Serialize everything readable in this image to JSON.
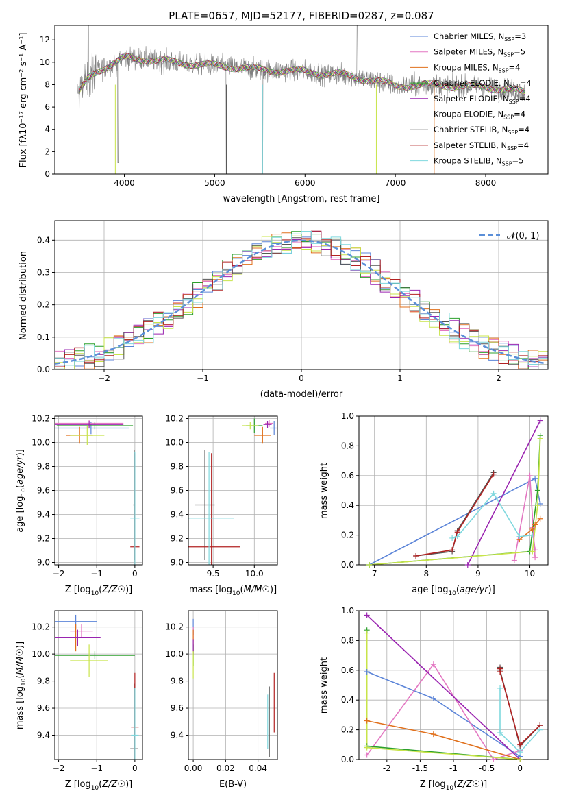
{
  "figure": {
    "title": "PLATE=0657, MJD=52177, FIBERID=0287, z=0.087"
  },
  "colors": {
    "Chabrier MILES": "#5b84d8",
    "Salpeter MILES": "#e377c2",
    "Kroupa MILES": "#e0701c",
    "Chabrier ELODIE": "#2ca02c",
    "Salpeter ELODIE": "#9a24b0",
    "Kroupa ELODIE": "#c8e44a",
    "Chabrier STELIB": "#555555",
    "Salpeter STELIB": "#b22222",
    "Kroupa STELIB": "#7fd8de",
    "data": "#808080",
    "gauss": "#5b8fd8"
  },
  "chart_data": [
    {
      "id": "spectrum",
      "type": "line",
      "title": "PLATE=0657, MJD=52177, FIBERID=0287, z=0.087",
      "xlabel": "wavelength [Angstrom, rest frame]",
      "ylabel": "Flux [fλ10⁻¹⁷ erg cm⁻² s⁻¹ A⁻¹]",
      "xlim": [
        3230,
        8690
      ],
      "ylim": [
        0,
        13.3
      ],
      "xticks": [
        4000,
        5000,
        6000,
        7000,
        8000
      ],
      "yticks": [
        0,
        2,
        4,
        6,
        8,
        10,
        12
      ],
      "legend_position": "top-right",
      "legend": [
        {
          "label": "Chabrier MILES, N",
          "sub": "SSP",
          "tail": "=3"
        },
        {
          "label": "Salpeter MILES, N",
          "sub": "SSP",
          "tail": "=5"
        },
        {
          "label": "Kroupa MILES, N",
          "sub": "SSP",
          "tail": "=4"
        },
        {
          "label": "Chabrier ELODIE, N",
          "sub": "SSP",
          "tail": "=4"
        },
        {
          "label": "Salpeter ELODIE, N",
          "sub": "SSP",
          "tail": "=4"
        },
        {
          "label": "Kroupa ELODIE, N",
          "sub": "SSP",
          "tail": "=4"
        },
        {
          "label": "Chabrier STELIB, N",
          "sub": "SSP",
          "tail": "=4"
        },
        {
          "label": "Salpeter STELIB, N",
          "sub": "SSP",
          "tail": "=4"
        },
        {
          "label": "Kroupa STELIB, N",
          "sub": "SSP",
          "tail": "=5"
        }
      ],
      "continuum_points": [
        [
          3480,
          7.0
        ],
        [
          3600,
          8.6
        ],
        [
          3700,
          9.3
        ],
        [
          3800,
          9.6
        ],
        [
          3900,
          9.9
        ],
        [
          4000,
          10.4
        ],
        [
          4200,
          10.3
        ],
        [
          4400,
          10.1
        ],
        [
          4600,
          10.0
        ],
        [
          4800,
          9.8
        ],
        [
          5000,
          9.7
        ],
        [
          5200,
          9.6
        ],
        [
          5400,
          9.4
        ],
        [
          5600,
          9.3
        ],
        [
          5800,
          9.2
        ],
        [
          6000,
          9.2
        ],
        [
          6200,
          9.0
        ],
        [
          6400,
          8.9
        ],
        [
          6600,
          8.6
        ],
        [
          6800,
          8.3
        ],
        [
          7000,
          7.9
        ],
        [
          7200,
          7.9
        ],
        [
          7400,
          8.0
        ],
        [
          7600,
          7.9
        ],
        [
          7800,
          7.8
        ],
        [
          8000,
          7.8
        ],
        [
          8200,
          7.6
        ],
        [
          8440,
          7.3
        ]
      ]
    },
    {
      "id": "residuals",
      "type": "histogram",
      "xlabel": "(data-model)/error",
      "ylabel": "Normed distribution",
      "xlim": [
        -2.5,
        2.5
      ],
      "ylim": [
        0,
        0.46
      ],
      "xticks": [
        -2,
        -1,
        0,
        1,
        2
      ],
      "yticks": [
        0.0,
        0.1,
        0.2,
        0.3,
        0.4
      ],
      "legend_position": "top-right",
      "legend": "𝒩(0, 1)",
      "bin_width": 0.1
    },
    {
      "id": "age-vs-Z",
      "type": "scatter",
      "xlabel": "Z [log10(Z/Z☉)]",
      "ylabel": "age  [log10(age/yr)]",
      "xlim": [
        -2.1,
        0.2
      ],
      "ylim": [
        8.98,
        10.22
      ],
      "xticks": [
        -2,
        -1,
        0
      ],
      "yticks": [
        9.0,
        9.2,
        9.4,
        9.6,
        9.8,
        10.0,
        10.2
      ],
      "points": [
        {
          "series": "Chabrier MILES",
          "x": -1.15,
          "y": 10.12,
          "xerr": 1.0,
          "yerr": 0.05
        },
        {
          "series": "Salpeter MILES",
          "x": -1.2,
          "y": 10.16,
          "xerr": 0.9,
          "yerr": 0.03
        },
        {
          "series": "Kroupa MILES",
          "x": -1.45,
          "y": 10.06,
          "xerr": 0.35,
          "yerr": 0.07
        },
        {
          "series": "Chabrier ELODIE",
          "x": -1.05,
          "y": 10.14,
          "xerr": 1.0,
          "yerr": 0.03
        },
        {
          "series": "Salpeter ELODIE",
          "x": -1.2,
          "y": 10.15,
          "xerr": 0.9,
          "yerr": 0.03
        },
        {
          "series": "Kroupa ELODIE",
          "x": -1.25,
          "y": 10.06,
          "xerr": 0.45,
          "yerr": 0.08
        },
        {
          "series": "Chabrier STELIB",
          "x": -0.02,
          "y": 9.48,
          "xerr": 0.03,
          "yerr": 0.46
        },
        {
          "series": "Salpeter STELIB",
          "x": 0.0,
          "y": 9.13,
          "xerr": 0.12,
          "yerr": 0.78
        },
        {
          "series": "Kroupa STELIB",
          "x": 0.0,
          "y": 9.37,
          "xerr": 0.12,
          "yerr": 0.55
        }
      ]
    },
    {
      "id": "age-vs-mass",
      "type": "scatter",
      "xlabel": "mass [log10(M/M☉)]",
      "ylabel": "",
      "xlim": [
        9.2,
        10.28
      ],
      "ylim": [
        8.98,
        10.22
      ],
      "xticks": [
        9.5,
        10.0
      ],
      "yticks": [
        9.0,
        9.2,
        9.4,
        9.6,
        9.8,
        10.0,
        10.2
      ],
      "points": [
        {
          "series": "Chabrier MILES",
          "x": 10.24,
          "y": 10.12,
          "xerr": 0.05,
          "yerr": 0.06
        },
        {
          "series": "Salpeter MILES",
          "x": 10.18,
          "y": 10.16,
          "xerr": 0.05,
          "yerr": 0.03
        },
        {
          "series": "Kroupa MILES",
          "x": 10.1,
          "y": 10.06,
          "xerr": 0.1,
          "yerr": 0.07
        },
        {
          "series": "Chabrier ELODIE",
          "x": 10.0,
          "y": 10.14,
          "xerr": 0.1,
          "yerr": 0.06
        },
        {
          "series": "Salpeter ELODIE",
          "x": 10.16,
          "y": 10.15,
          "xerr": 0.05,
          "yerr": 0.03
        },
        {
          "series": "Kroupa ELODIE",
          "x": 9.95,
          "y": 10.14,
          "xerr": 0.1,
          "yerr": 0.03
        },
        {
          "series": "Chabrier STELIB",
          "x": 9.4,
          "y": 9.48,
          "xerr": 0.12,
          "yerr": 0.46
        },
        {
          "series": "Salpeter STELIB",
          "x": 9.48,
          "y": 9.13,
          "xerr": 0.35,
          "yerr": 0.78
        },
        {
          "series": "Kroupa STELIB",
          "x": 9.45,
          "y": 9.37,
          "xerr": 0.3,
          "yerr": 0.55
        }
      ]
    },
    {
      "id": "weight-vs-age",
      "type": "line",
      "xlabel": "age  [log10(age/yr)]",
      "ylabel": "mass weight",
      "xlim": [
        6.7,
        10.35
      ],
      "ylim": [
        0,
        1.0
      ],
      "xticks": [
        7,
        8,
        9,
        10
      ],
      "yticks": [
        0.0,
        0.2,
        0.4,
        0.6,
        0.8,
        1.0
      ],
      "series": [
        {
          "name": "Chabrier MILES",
          "x": [
            6.9,
            10.1,
            10.2
          ],
          "y": [
            0.0,
            0.58,
            0.41
          ]
        },
        {
          "name": "Salpeter MILES",
          "x": [
            9.7,
            10.0,
            10.1,
            10.05,
            10.1
          ],
          "y": [
            0.03,
            0.6,
            0.05,
            0.25,
            0.1
          ]
        },
        {
          "name": "Kroupa MILES",
          "x": [
            9.8,
            10.05,
            10.1,
            10.2
          ],
          "y": [
            0.17,
            0.24,
            0.27,
            0.31
          ]
        },
        {
          "name": "Chabrier ELODIE",
          "x": [
            6.9,
            10.0,
            10.15,
            10.2
          ],
          "y": [
            0.0,
            0.09,
            0.5,
            0.87
          ]
        },
        {
          "name": "Salpeter ELODIE",
          "x": [
            8.8,
            10.2
          ],
          "y": [
            0.0,
            0.97
          ]
        },
        {
          "name": "Kroupa ELODIE",
          "x": [
            6.9,
            10.05,
            10.15,
            10.2
          ],
          "y": [
            0.0,
            0.09,
            0.4,
            0.85
          ]
        },
        {
          "name": "Chabrier STELIB",
          "x": [
            7.8,
            8.5,
            8.6,
            9.3
          ],
          "y": [
            0.06,
            0.09,
            0.23,
            0.62
          ]
        },
        {
          "name": "Salpeter STELIB",
          "x": [
            7.8,
            8.5,
            8.6,
            9.3
          ],
          "y": [
            0.06,
            0.1,
            0.22,
            0.61
          ]
        },
        {
          "name": "Kroupa STELIB",
          "x": [
            8.5,
            8.6,
            9.3,
            9.8,
            10.05
          ],
          "y": [
            0.18,
            0.19,
            0.48,
            0.19,
            0.2
          ]
        }
      ]
    },
    {
      "id": "mass-vs-Z",
      "type": "scatter",
      "xlabel": "Z [log10(Z/Z☉)]",
      "ylabel": "mass [log10(M/M☉)]",
      "xlim": [
        -2.1,
        0.2
      ],
      "ylim": [
        9.22,
        10.32
      ],
      "xticks": [
        -2,
        -1,
        0
      ],
      "yticks": [
        9.4,
        9.6,
        9.8,
        10.0,
        10.2
      ],
      "points": [
        {
          "series": "Chabrier MILES",
          "x": -1.55,
          "y": 10.24,
          "xerr": 0.55,
          "yerr": 0.05
        },
        {
          "series": "Salpeter MILES",
          "x": -1.4,
          "y": 10.17,
          "xerr": 0.3,
          "yerr": 0.05
        },
        {
          "series": "Kroupa MILES",
          "x": -1.55,
          "y": 10.12,
          "xerr": 0.55,
          "yerr": 0.1
        },
        {
          "series": "Chabrier ELODIE",
          "x": -1.05,
          "y": 9.99,
          "xerr": 1.05,
          "yerr": 0.03
        },
        {
          "series": "Salpeter ELODIE",
          "x": -1.5,
          "y": 10.12,
          "xerr": 0.6,
          "yerr": 0.06
        },
        {
          "series": "Kroupa ELODIE",
          "x": -1.2,
          "y": 9.95,
          "xerr": 0.5,
          "yerr": 0.12
        },
        {
          "series": "Chabrier STELIB",
          "x": -0.02,
          "y": 9.3,
          "xerr": 0.1,
          "yerr": 0.48
        },
        {
          "series": "Salpeter STELIB",
          "x": 0.0,
          "y": 9.46,
          "xerr": 0.1,
          "yerr": 0.4
        },
        {
          "series": "Kroupa STELIB",
          "x": 0.0,
          "y": 9.4,
          "xerr": 0.1,
          "yerr": 0.35
        }
      ]
    },
    {
      "id": "mass-vs-EBV",
      "type": "scatter",
      "xlabel": "E(B-V)",
      "ylabel": "",
      "xlim": [
        -0.003,
        0.052
      ],
      "ylim": [
        9.22,
        10.32
      ],
      "xticks": [
        0.0,
        0.02,
        0.04
      ],
      "yticks": [
        9.4,
        9.6,
        9.8,
        10.0,
        10.2
      ],
      "points": [
        {
          "series": "Chabrier MILES",
          "x": 0.0,
          "y": 10.2,
          "xerr": 0.0,
          "yerr": 0.06
        },
        {
          "series": "Salpeter MILES",
          "x": 0.0,
          "y": 10.15,
          "xerr": 0.0,
          "yerr": 0.05
        },
        {
          "series": "Kroupa MILES",
          "x": 0.0,
          "y": 10.1,
          "xerr": 0.0,
          "yerr": 0.08
        },
        {
          "series": "Chabrier ELODIE",
          "x": 0.0,
          "y": 9.99,
          "xerr": 0.0,
          "yerr": 0.08
        },
        {
          "series": "Salpeter ELODIE",
          "x": 0.0,
          "y": 10.05,
          "xerr": 0.0,
          "yerr": 0.06
        },
        {
          "series": "Kroupa ELODIE",
          "x": 0.0,
          "y": 9.92,
          "xerr": 0.0,
          "yerr": 0.1
        },
        {
          "series": "Chabrier STELIB",
          "x": 0.047,
          "y": 9.5,
          "xerr": 0.0,
          "yerr": 0.26
        },
        {
          "series": "Salpeter STELIB",
          "x": 0.05,
          "y": 9.64,
          "xerr": 0.0,
          "yerr": 0.22
        },
        {
          "series": "Kroupa STELIB",
          "x": 0.046,
          "y": 9.5,
          "xerr": 0.0,
          "yerr": 0.2
        }
      ]
    },
    {
      "id": "weight-vs-Z",
      "type": "line",
      "xlabel": "Z [log10(Z/Z☉)]",
      "ylabel": "mass weight",
      "xlim": [
        -2.42,
        0.42
      ],
      "ylim": [
        0,
        1.0
      ],
      "xticks": [
        -2.0,
        -1.5,
        -1.0,
        -0.5,
        0.0
      ],
      "yticks": [
        0.0,
        0.2,
        0.4,
        0.6,
        0.8,
        1.0
      ],
      "series": [
        {
          "name": "Chabrier MILES",
          "x": [
            -2.3,
            -1.3,
            0.0
          ],
          "y": [
            0.59,
            0.41,
            0.02
          ]
        },
        {
          "name": "Salpeter MILES",
          "x": [
            -2.3,
            -1.3,
            -0.4,
            0.0
          ],
          "y": [
            0.03,
            0.64,
            0.0,
            0.06
          ]
        },
        {
          "name": "Kroupa MILES",
          "x": [
            -2.3,
            -1.3,
            0.0
          ],
          "y": [
            0.26,
            0.17,
            0.0
          ]
        },
        {
          "name": "Chabrier ELODIE",
          "x": [
            -2.3,
            -2.3,
            0.0
          ],
          "y": [
            0.87,
            0.09,
            0.0
          ]
        },
        {
          "name": "Salpeter ELODIE",
          "x": [
            -2.3,
            0.0
          ],
          "y": [
            0.97,
            0.0
          ]
        },
        {
          "name": "Kroupa ELODIE",
          "x": [
            -2.3,
            -2.3,
            0.0
          ],
          "y": [
            0.85,
            0.08,
            0.0
          ]
        },
        {
          "name": "Chabrier STELIB",
          "x": [
            -0.3,
            -0.3,
            0.0,
            0.3
          ],
          "y": [
            0.62,
            0.6,
            0.09,
            0.23
          ]
        },
        {
          "name": "Salpeter STELIB",
          "x": [
            -0.3,
            -0.3,
            0.0,
            0.3
          ],
          "y": [
            0.61,
            0.59,
            0.1,
            0.23
          ]
        },
        {
          "name": "Kroupa STELIB",
          "x": [
            -0.3,
            -0.3,
            0.0,
            0.3
          ],
          "y": [
            0.48,
            0.18,
            0.05,
            0.2
          ]
        }
      ]
    }
  ]
}
